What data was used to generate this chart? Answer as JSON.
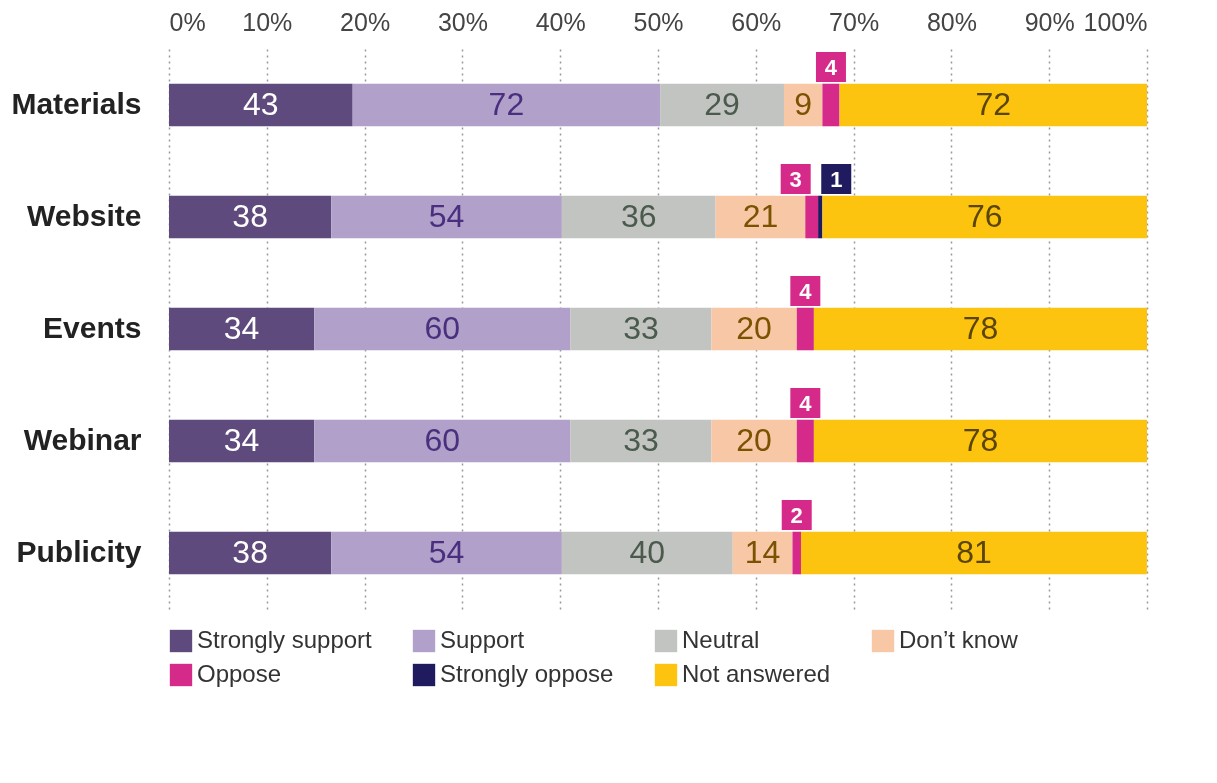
{
  "chart_data": {
    "type": "bar",
    "orientation": "horizontal",
    "stacked": true,
    "grid": "x",
    "legend": "bottom",
    "categories": [
      "Materials",
      "Website",
      "Events",
      "Webinar",
      "Publicity"
    ],
    "xlim": [
      0,
      100
    ],
    "xticks": [
      {
        "value": 0,
        "label": "0%"
      },
      {
        "value": 10,
        "label": "10%"
      },
      {
        "value": 20,
        "label": "20%"
      },
      {
        "value": 30,
        "label": "30%"
      },
      {
        "value": 40,
        "label": "40%"
      },
      {
        "value": 50,
        "label": "50%"
      },
      {
        "value": 60,
        "label": "60%"
      },
      {
        "value": 70,
        "label": "70%"
      },
      {
        "value": 80,
        "label": "80%"
      },
      {
        "value": 90,
        "label": "90%"
      },
      {
        "value": 100,
        "label": "100%"
      }
    ],
    "series": [
      {
        "name": "Strongly support",
        "color": "#5e4a7d",
        "values": [
          18.78,
          16.59,
          14.85,
          14.85,
          16.59
        ]
      },
      {
        "name": "Support",
        "color": "#b1a0c9",
        "values": [
          31.44,
          23.58,
          26.2,
          26.2,
          23.58
        ]
      },
      {
        "name": "Neutral",
        "color": "#c1c4c1",
        "values": [
          12.66,
          15.72,
          14.41,
          14.41,
          17.47
        ]
      },
      {
        "name": "Don’t know",
        "color": "#f8c7a6",
        "values": [
          3.93,
          9.17,
          8.73,
          8.73,
          6.11
        ]
      },
      {
        "name": "Oppose",
        "color": "#d62a8a",
        "values": [
          1.75,
          1.31,
          1.75,
          1.75,
          0.87
        ]
      },
      {
        "name": "Strongly oppose",
        "color": "#1f1b5e",
        "values": [
          null,
          0.44,
          null,
          null,
          null
        ]
      },
      {
        "name": "Not answered",
        "color": "#fcc30f",
        "values": [
          31.44,
          33.19,
          34.06,
          34.06,
          35.37
        ]
      }
    ],
    "annotations": [
      "43",
      "72",
      "29",
      "9",
      "4",
      "72",
      "38",
      "54",
      "36",
      "21",
      "3",
      "1",
      "76",
      "34",
      "60",
      "33",
      "20",
      "4",
      "78",
      "34",
      "60",
      "33",
      "20",
      "4",
      "78",
      "38",
      "54",
      "40",
      "14",
      "2",
      "81"
    ]
  }
}
